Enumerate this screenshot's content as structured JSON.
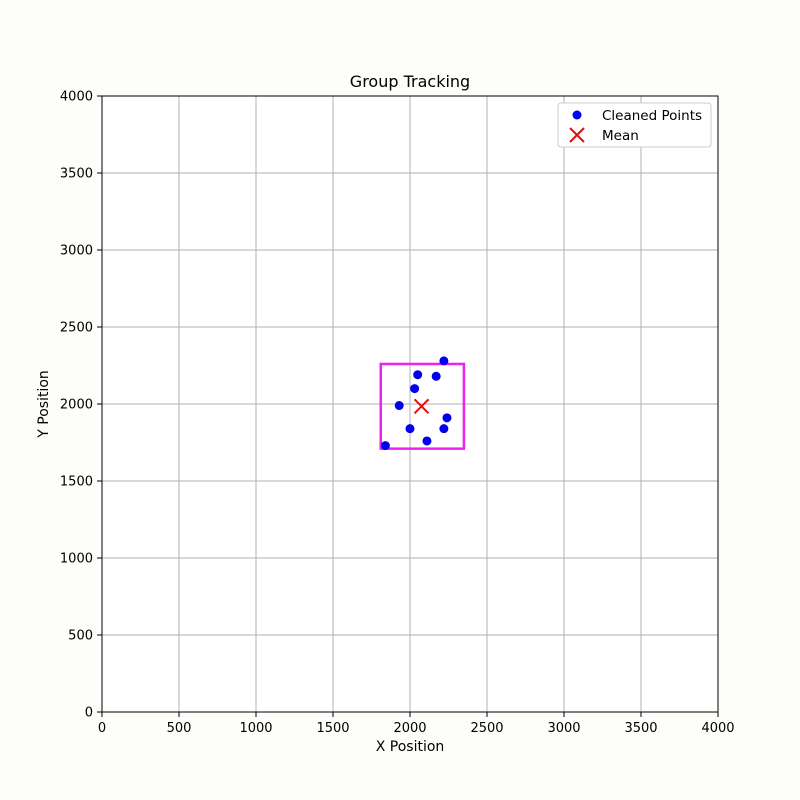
{
  "chart_data": {
    "type": "scatter",
    "title": "Group Tracking",
    "xlabel": "X Position",
    "ylabel": "Y Position",
    "xlim": [
      0,
      4000
    ],
    "ylim": [
      0,
      4000
    ],
    "xticks": [
      0,
      500,
      1000,
      1500,
      2000,
      2500,
      3000,
      3500,
      4000
    ],
    "yticks": [
      0,
      500,
      1000,
      1500,
      2000,
      2500,
      3000,
      3500,
      4000
    ],
    "grid": true,
    "legend_position": "top-right",
    "series": [
      {
        "name": "Cleaned Points",
        "marker": "circle",
        "color": "#0000ee",
        "points": [
          {
            "x": 2220,
            "y": 2280
          },
          {
            "x": 2050,
            "y": 2190
          },
          {
            "x": 2170,
            "y": 2180
          },
          {
            "x": 2030,
            "y": 2100
          },
          {
            "x": 1930,
            "y": 1990
          },
          {
            "x": 2240,
            "y": 1910
          },
          {
            "x": 2000,
            "y": 1840
          },
          {
            "x": 2220,
            "y": 1840
          },
          {
            "x": 2110,
            "y": 1760
          },
          {
            "x": 1840,
            "y": 1730
          }
        ]
      },
      {
        "name": "Mean",
        "marker": "x",
        "color": "#dd1111",
        "points": [
          {
            "x": 2075,
            "y": 1985
          }
        ]
      }
    ],
    "bounding_box": {
      "x_min": 1810,
      "x_max": 2350,
      "y_min": 1710,
      "y_max": 2260,
      "color": "#ee22ee"
    }
  }
}
